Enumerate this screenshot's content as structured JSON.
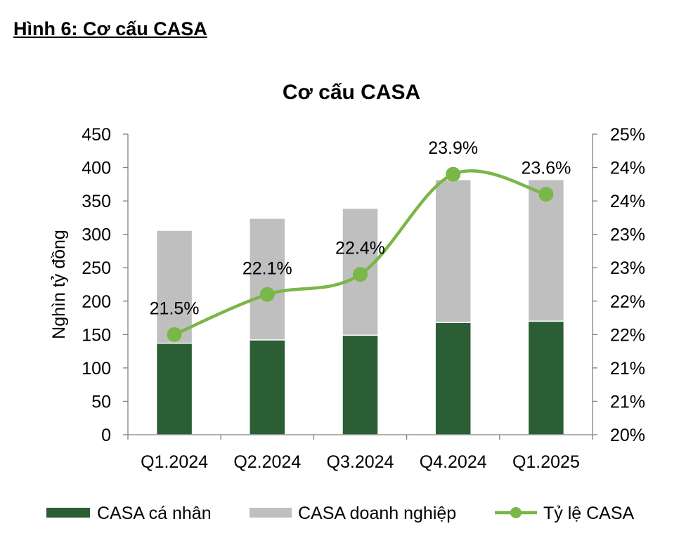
{
  "figure_heading": "Hình 6: Cơ cấu CASA",
  "chart_data": {
    "type": "bar",
    "stacked": true,
    "title": "Cơ cấu CASA",
    "ylabel": "Nghìn tỷ đồng",
    "ylim": [
      0,
      450
    ],
    "yticks": [
      "0",
      "50",
      "100",
      "150",
      "200",
      "250",
      "300",
      "350",
      "400",
      "450"
    ],
    "y2lim": [
      20,
      24.5
    ],
    "y2ticks": [
      "20%",
      "21%",
      "21%",
      "22%",
      "22%",
      "23%",
      "23%",
      "24%",
      "24%",
      "25%"
    ],
    "categories": [
      "Q1.2024",
      "Q2.2024",
      "Q3.2024",
      "Q4.2024",
      "Q1.2025"
    ],
    "series": [
      {
        "name": "CASA cá nhân",
        "type": "bar",
        "axis": "left",
        "color": "#2b5e35",
        "values": [
          137,
          142,
          149,
          168,
          170
        ]
      },
      {
        "name": "CASA doanh nghiệp",
        "type": "bar",
        "axis": "left",
        "color": "#bfbfbf",
        "values": [
          169,
          182,
          190,
          214,
          212
        ]
      },
      {
        "name": "Tỷ lệ CASA",
        "type": "line",
        "axis": "right",
        "color": "#7ab648",
        "values": [
          21.5,
          22.1,
          22.4,
          23.9,
          23.6
        ],
        "labels": [
          "21.5%",
          "22.1%",
          "22.4%",
          "23.9%",
          "23.6%"
        ]
      }
    ],
    "legend_position": "bottom",
    "grid": false
  }
}
